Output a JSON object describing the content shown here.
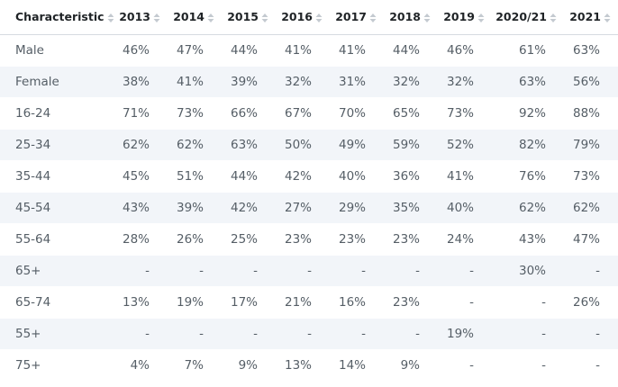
{
  "chart_data": {
    "type": "table",
    "columns": [
      "Characteristic",
      "2013",
      "2014",
      "2015",
      "2016",
      "2017",
      "2018",
      "2019",
      "2020/21",
      "2021"
    ],
    "rows": [
      [
        "Male",
        "46%",
        "47%",
        "44%",
        "41%",
        "41%",
        "44%",
        "46%",
        "61%",
        "63%"
      ],
      [
        "Female",
        "38%",
        "41%",
        "39%",
        "32%",
        "31%",
        "32%",
        "32%",
        "63%",
        "56%"
      ],
      [
        "16-24",
        "71%",
        "73%",
        "66%",
        "67%",
        "70%",
        "65%",
        "73%",
        "92%",
        "88%"
      ],
      [
        "25-34",
        "62%",
        "62%",
        "63%",
        "50%",
        "49%",
        "59%",
        "52%",
        "82%",
        "79%"
      ],
      [
        "35-44",
        "45%",
        "51%",
        "44%",
        "42%",
        "40%",
        "36%",
        "41%",
        "76%",
        "73%"
      ],
      [
        "45-54",
        "43%",
        "39%",
        "42%",
        "27%",
        "29%",
        "35%",
        "40%",
        "62%",
        "62%"
      ],
      [
        "55-64",
        "28%",
        "26%",
        "25%",
        "23%",
        "23%",
        "23%",
        "24%",
        "43%",
        "47%"
      ],
      [
        "65+",
        "-",
        "-",
        "-",
        "-",
        "-",
        "-",
        "-",
        "30%",
        "-"
      ],
      [
        "65-74",
        "13%",
        "19%",
        "17%",
        "21%",
        "16%",
        "23%",
        "-",
        "-",
        "26%"
      ],
      [
        "55+",
        "-",
        "-",
        "-",
        "-",
        "-",
        "-",
        "19%",
        "-",
        "-"
      ],
      [
        "75+",
        "4%",
        "7%",
        "9%",
        "13%",
        "14%",
        "9%",
        "-",
        "-",
        "-"
      ]
    ]
  }
}
